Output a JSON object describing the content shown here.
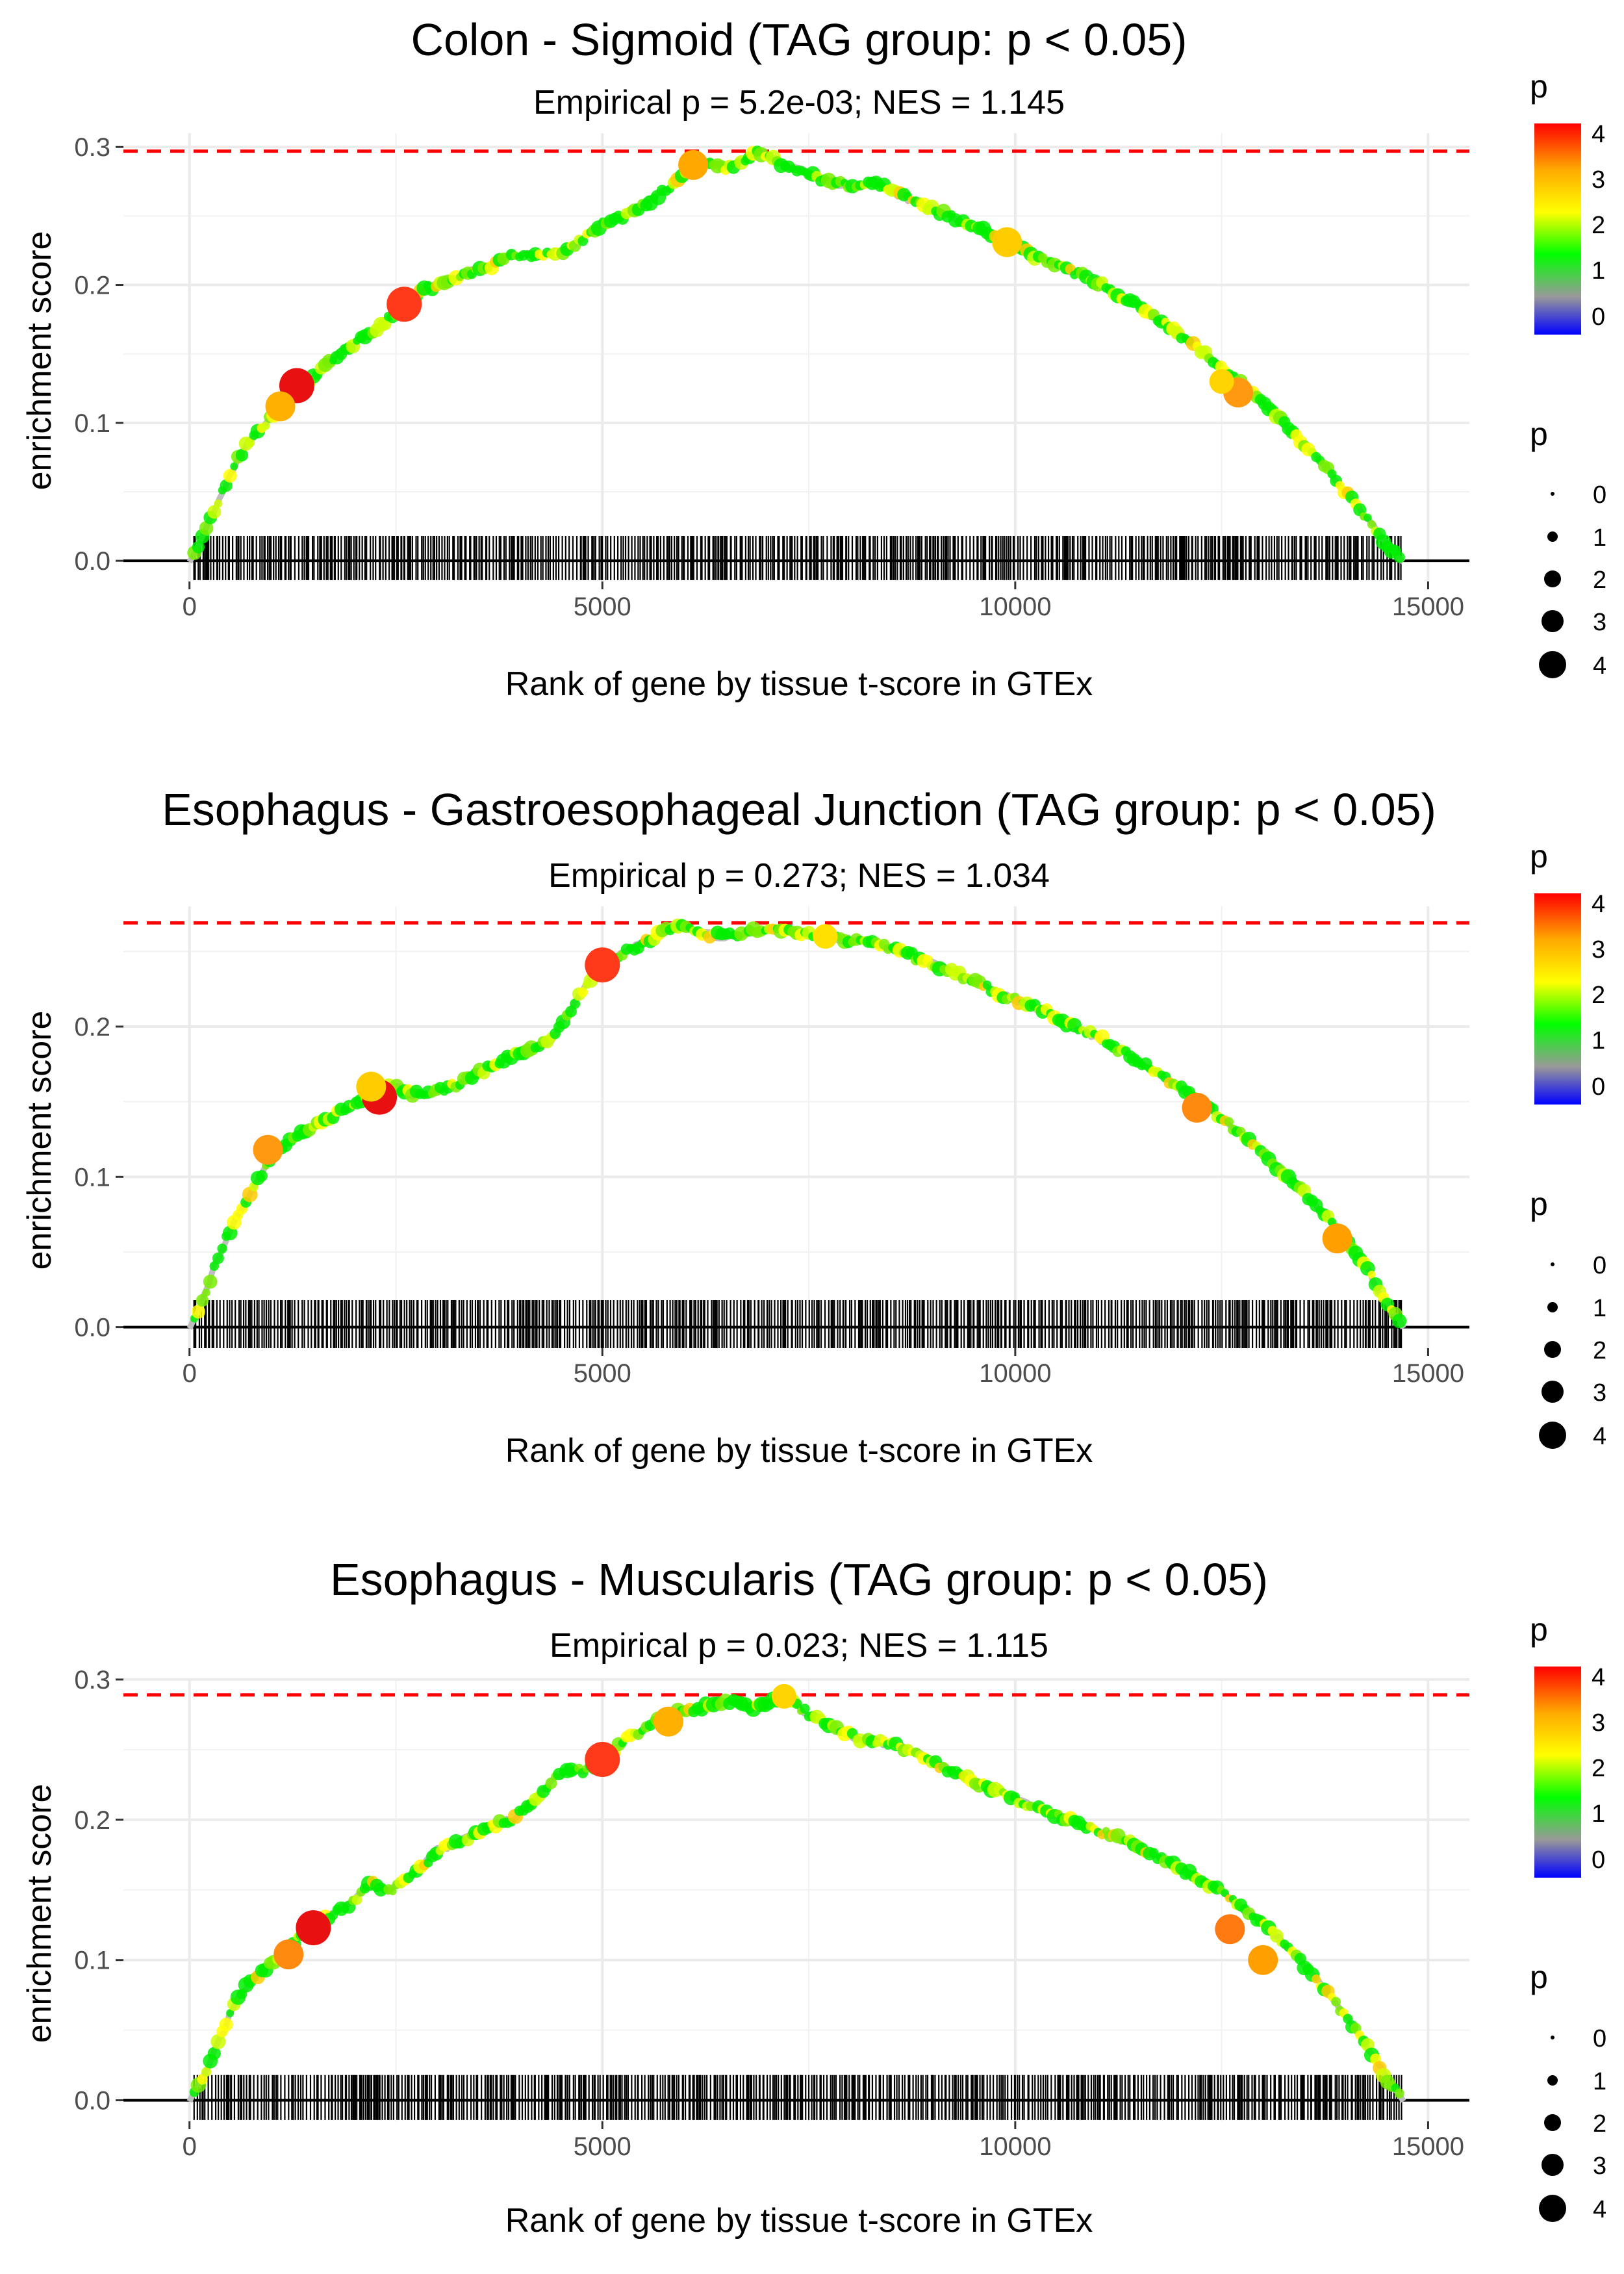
{
  "chart_data": [
    {
      "type": "line",
      "title": "Colon - Sigmoid (TAG group: p < 0.05)",
      "subtitle": "Empirical p = 5.2e-03; NES = 1.145",
      "xlabel": "Rank of gene by tissue t-score in GTEx",
      "ylabel": "enrichment score",
      "xlim": [
        -800,
        15500
      ],
      "ylim": [
        -0.015,
        0.31
      ],
      "xticks": [
        0,
        5000,
        10000,
        15000
      ],
      "xtick_labels": [
        "0",
        "5000",
        "10000",
        "15000"
      ],
      "yticks": [
        0.0,
        0.1,
        0.2,
        0.3
      ],
      "ytick_labels": [
        "0.0",
        "0.1",
        "0.2",
        "0.3"
      ],
      "max_es": 0.297,
      "n_genes": 14700,
      "curve": {
        "x": [
          0,
          100,
          250,
          400,
          550,
          700,
          850,
          1000,
          1150,
          1300,
          1450,
          1600,
          1800,
          2000,
          2200,
          2400,
          2600,
          2800,
          3000,
          3300,
          3600,
          3900,
          4200,
          4500,
          4800,
          5000,
          5300,
          5600,
          5900,
          6100,
          6300,
          6500,
          6700,
          6900,
          7100,
          7400,
          7700,
          8000,
          8300,
          8600,
          9000,
          9400,
          9800,
          10200,
          10600,
          11000,
          11400,
          11800,
          12200,
          12600,
          13000,
          13400,
          13800,
          14200,
          14500,
          14700
        ],
        "y": [
          0.0,
          0.01,
          0.03,
          0.05,
          0.07,
          0.085,
          0.095,
          0.105,
          0.115,
          0.125,
          0.13,
          0.14,
          0.15,
          0.158,
          0.165,
          0.175,
          0.185,
          0.195,
          0.2,
          0.208,
          0.212,
          0.222,
          0.222,
          0.223,
          0.235,
          0.245,
          0.25,
          0.262,
          0.275,
          0.285,
          0.288,
          0.285,
          0.29,
          0.297,
          0.29,
          0.283,
          0.275,
          0.272,
          0.275,
          0.265,
          0.255,
          0.245,
          0.235,
          0.222,
          0.212,
          0.202,
          0.188,
          0.172,
          0.155,
          0.135,
          0.115,
          0.09,
          0.065,
          0.035,
          0.012,
          0.0
        ]
      },
      "highlights": [
        {
          "x": 2600,
          "y": 0.186,
          "p": 4,
          "color": "#ff3a1a"
        },
        {
          "x": 1300,
          "y": 0.127,
          "p": 4,
          "color": "#e81010"
        },
        {
          "x": 1100,
          "y": 0.112,
          "p": 3,
          "color": "#ffb000"
        },
        {
          "x": 6100,
          "y": 0.287,
          "p": 3,
          "color": "#ffa800"
        },
        {
          "x": 12700,
          "y": 0.122,
          "p": 3,
          "color": "#ff9a10"
        },
        {
          "x": 9900,
          "y": 0.231,
          "p": 3,
          "color": "#ffcc00"
        },
        {
          "x": 12500,
          "y": 0.13,
          "p": 2,
          "color": "#ffd400"
        }
      ],
      "legend_color": {
        "title": "p",
        "labels": [
          "4",
          "3",
          "2",
          "1",
          "0"
        ]
      },
      "legend_size": {
        "title": "p",
        "labels": [
          "0",
          "1",
          "2",
          "3",
          "4"
        ]
      }
    },
    {
      "type": "line",
      "title": "Esophagus - Gastroesophageal Junction (TAG group: p < 0.05)",
      "subtitle": "Empirical p = 0.273; NES = 1.034",
      "xlabel": "Rank of gene by tissue t-score in GTEx",
      "ylabel": "enrichment score",
      "xlim": [
        -800,
        15500
      ],
      "ylim": [
        -0.014,
        0.28
      ],
      "xticks": [
        0,
        5000,
        10000,
        15000
      ],
      "xtick_labels": [
        "0",
        "5000",
        "10000",
        "15000"
      ],
      "yticks": [
        0.0,
        0.1,
        0.2
      ],
      "ytick_labels": [
        "0.0",
        "0.1",
        "0.2"
      ],
      "max_es": 0.269,
      "n_genes": 14700,
      "curve": {
        "x": [
          0,
          150,
          300,
          450,
          600,
          750,
          900,
          1050,
          1250,
          1450,
          1650,
          1850,
          2050,
          2250,
          2450,
          2700,
          3000,
          3300,
          3600,
          3900,
          4200,
          4400,
          4600,
          4800,
          5000,
          5300,
          5600,
          5900,
          6200,
          6500,
          6800,
          7100,
          7400,
          7700,
          8000,
          8300,
          8700,
          9100,
          9500,
          9900,
          10300,
          10700,
          11100,
          11500,
          11900,
          12300,
          12700,
          13100,
          13500,
          13900,
          14300,
          14500,
          14700
        ],
        "y": [
          0.0,
          0.015,
          0.04,
          0.06,
          0.075,
          0.09,
          0.105,
          0.118,
          0.125,
          0.132,
          0.138,
          0.144,
          0.15,
          0.156,
          0.16,
          0.155,
          0.157,
          0.163,
          0.172,
          0.18,
          0.186,
          0.192,
          0.21,
          0.228,
          0.24,
          0.25,
          0.258,
          0.268,
          0.262,
          0.26,
          0.263,
          0.266,
          0.262,
          0.26,
          0.258,
          0.255,
          0.248,
          0.24,
          0.23,
          0.22,
          0.212,
          0.2,
          0.19,
          0.177,
          0.163,
          0.148,
          0.13,
          0.11,
          0.09,
          0.065,
          0.035,
          0.015,
          0.0
        ]
      },
      "highlights": [
        {
          "x": 2300,
          "y": 0.153,
          "p": 4,
          "color": "#e81010"
        },
        {
          "x": 2200,
          "y": 0.16,
          "p": 3,
          "color": "#ffcc00"
        },
        {
          "x": 5000,
          "y": 0.241,
          "p": 4,
          "color": "#ff3a1a"
        },
        {
          "x": 950,
          "y": 0.118,
          "p": 3,
          "color": "#ff9a10"
        },
        {
          "x": 12200,
          "y": 0.146,
          "p": 3,
          "color": "#ff8a10"
        },
        {
          "x": 13900,
          "y": 0.059,
          "p": 3,
          "color": "#ffa000"
        },
        {
          "x": 7700,
          "y": 0.26,
          "p": 2,
          "color": "#ffe000"
        }
      ],
      "legend_color": {
        "title": "p",
        "labels": [
          "4",
          "3",
          "2",
          "1",
          "0"
        ]
      },
      "legend_size": {
        "title": "p",
        "labels": [
          "0",
          "1",
          "2",
          "3",
          "4"
        ]
      }
    },
    {
      "type": "line",
      "title": "Esophagus - Muscularis (TAG group: p < 0.05)",
      "subtitle": "Empirical p = 0.023; NES = 1.115",
      "xlabel": "Rank of gene by tissue t-score in GTEx",
      "ylabel": "enrichment score",
      "xlim": [
        -800,
        15500
      ],
      "ylim": [
        -0.015,
        0.3
      ],
      "xticks": [
        0,
        5000,
        10000,
        15000
      ],
      "xtick_labels": [
        "0",
        "5000",
        "10000",
        "15000"
      ],
      "yticks": [
        0.0,
        0.1,
        0.2,
        0.3
      ],
      "ytick_labels": [
        "0.0",
        "0.1",
        "0.2",
        "0.3"
      ],
      "max_es": 0.289,
      "n_genes": 14700,
      "curve": {
        "x": [
          0,
          150,
          300,
          450,
          600,
          800,
          1000,
          1200,
          1400,
          1600,
          1800,
          2000,
          2200,
          2400,
          2600,
          2800,
          3000,
          3300,
          3600,
          3900,
          4200,
          4400,
          4600,
          4800,
          5000,
          5300,
          5600,
          5900,
          6200,
          6500,
          6800,
          7000,
          7200,
          7500,
          7800,
          8100,
          8400,
          8800,
          9200,
          9600,
          10000,
          10400,
          10800,
          11200,
          11600,
          12000,
          12400,
          12800,
          13200,
          13600,
          14000,
          14300,
          14500,
          14700
        ],
        "y": [
          0.0,
          0.015,
          0.035,
          0.055,
          0.075,
          0.088,
          0.098,
          0.108,
          0.122,
          0.128,
          0.135,
          0.142,
          0.155,
          0.148,
          0.158,
          0.165,
          0.178,
          0.185,
          0.195,
          0.2,
          0.215,
          0.228,
          0.236,
          0.235,
          0.242,
          0.258,
          0.268,
          0.276,
          0.28,
          0.285,
          0.28,
          0.283,
          0.289,
          0.275,
          0.265,
          0.258,
          0.255,
          0.248,
          0.235,
          0.225,
          0.215,
          0.205,
          0.197,
          0.188,
          0.178,
          0.165,
          0.152,
          0.135,
          0.115,
          0.09,
          0.06,
          0.035,
          0.015,
          0.0
        ]
      },
      "highlights": [
        {
          "x": 1500,
          "y": 0.123,
          "p": 4,
          "color": "#e81010"
        },
        {
          "x": 5000,
          "y": 0.243,
          "p": 4,
          "color": "#ff3a1a"
        },
        {
          "x": 1200,
          "y": 0.104,
          "p": 3,
          "color": "#ff8a10"
        },
        {
          "x": 12600,
          "y": 0.122,
          "p": 3,
          "color": "#ff7a10"
        },
        {
          "x": 5800,
          "y": 0.27,
          "p": 3,
          "color": "#ffb000"
        },
        {
          "x": 7200,
          "y": 0.288,
          "p": 2,
          "color": "#ffd400"
        },
        {
          "x": 13000,
          "y": 0.1,
          "p": 3,
          "color": "#ffa000"
        }
      ],
      "legend_color": {
        "title": "p",
        "labels": [
          "4",
          "3",
          "2",
          "1",
          "0"
        ]
      },
      "legend_size": {
        "title": "p",
        "labels": [
          "0",
          "1",
          "2",
          "3",
          "4"
        ]
      }
    }
  ],
  "colors": {
    "gradient_stops": [
      "#ff0000",
      "#ffaa00",
      "#ffff00",
      "#00ff00",
      "#999999",
      "#0000ff"
    ],
    "hline": "#ff0000",
    "rug": "#000000"
  }
}
